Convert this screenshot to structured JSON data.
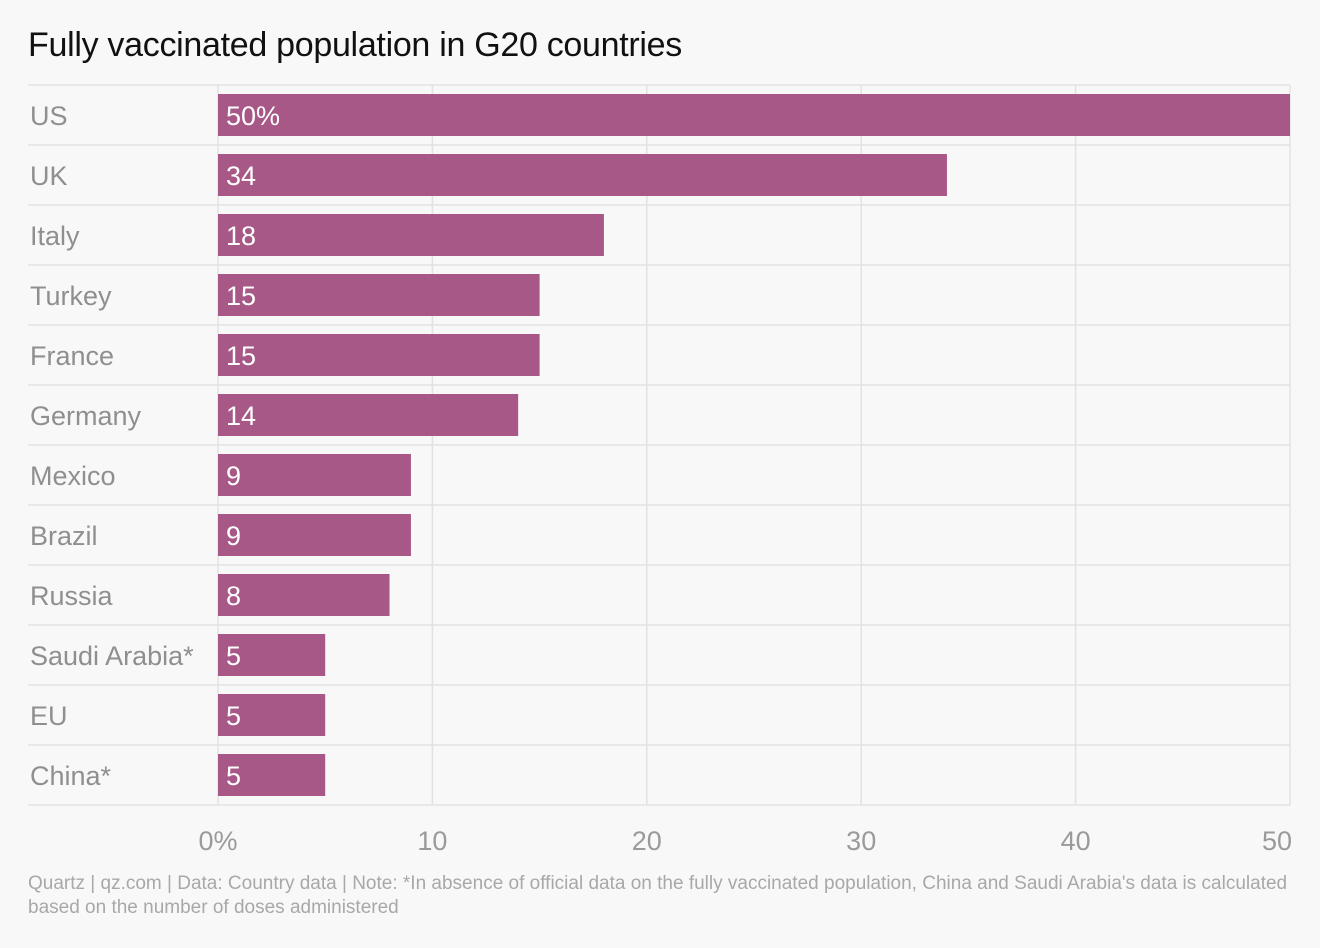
{
  "chart_data": {
    "type": "bar",
    "orientation": "horizontal",
    "title": "Fully vaccinated population in G20 countries",
    "categories": [
      "US",
      "UK",
      "Italy",
      "Turkey",
      "France",
      "Germany",
      "Mexico",
      "Brazil",
      "Russia",
      "Saudi Arabia*",
      "EU",
      "China*"
    ],
    "values": [
      50,
      34,
      18,
      15,
      15,
      14,
      9,
      9,
      8,
      5,
      5,
      5
    ],
    "value_labels": [
      "50%",
      "34",
      "18",
      "15",
      "15",
      "14",
      "9",
      "9",
      "8",
      "5",
      "5",
      "5"
    ],
    "xlim": [
      0,
      50
    ],
    "x_ticks": [
      0,
      10,
      20,
      30,
      40,
      50
    ],
    "x_tick_labels": [
      "0%",
      "10",
      "20",
      "30",
      "40",
      "50"
    ],
    "xlabel": "",
    "ylabel": "",
    "grid": true,
    "colors": {
      "bar": "#a85886",
      "grid": "#e2e2e2",
      "background": "#f8f8f8"
    }
  },
  "footer": "Quartz | qz.com | Data: Country data | Note: *In absence of official data on the fully vaccinated population, China and Saudi Arabia's data is calculated based on the number of doses administered"
}
